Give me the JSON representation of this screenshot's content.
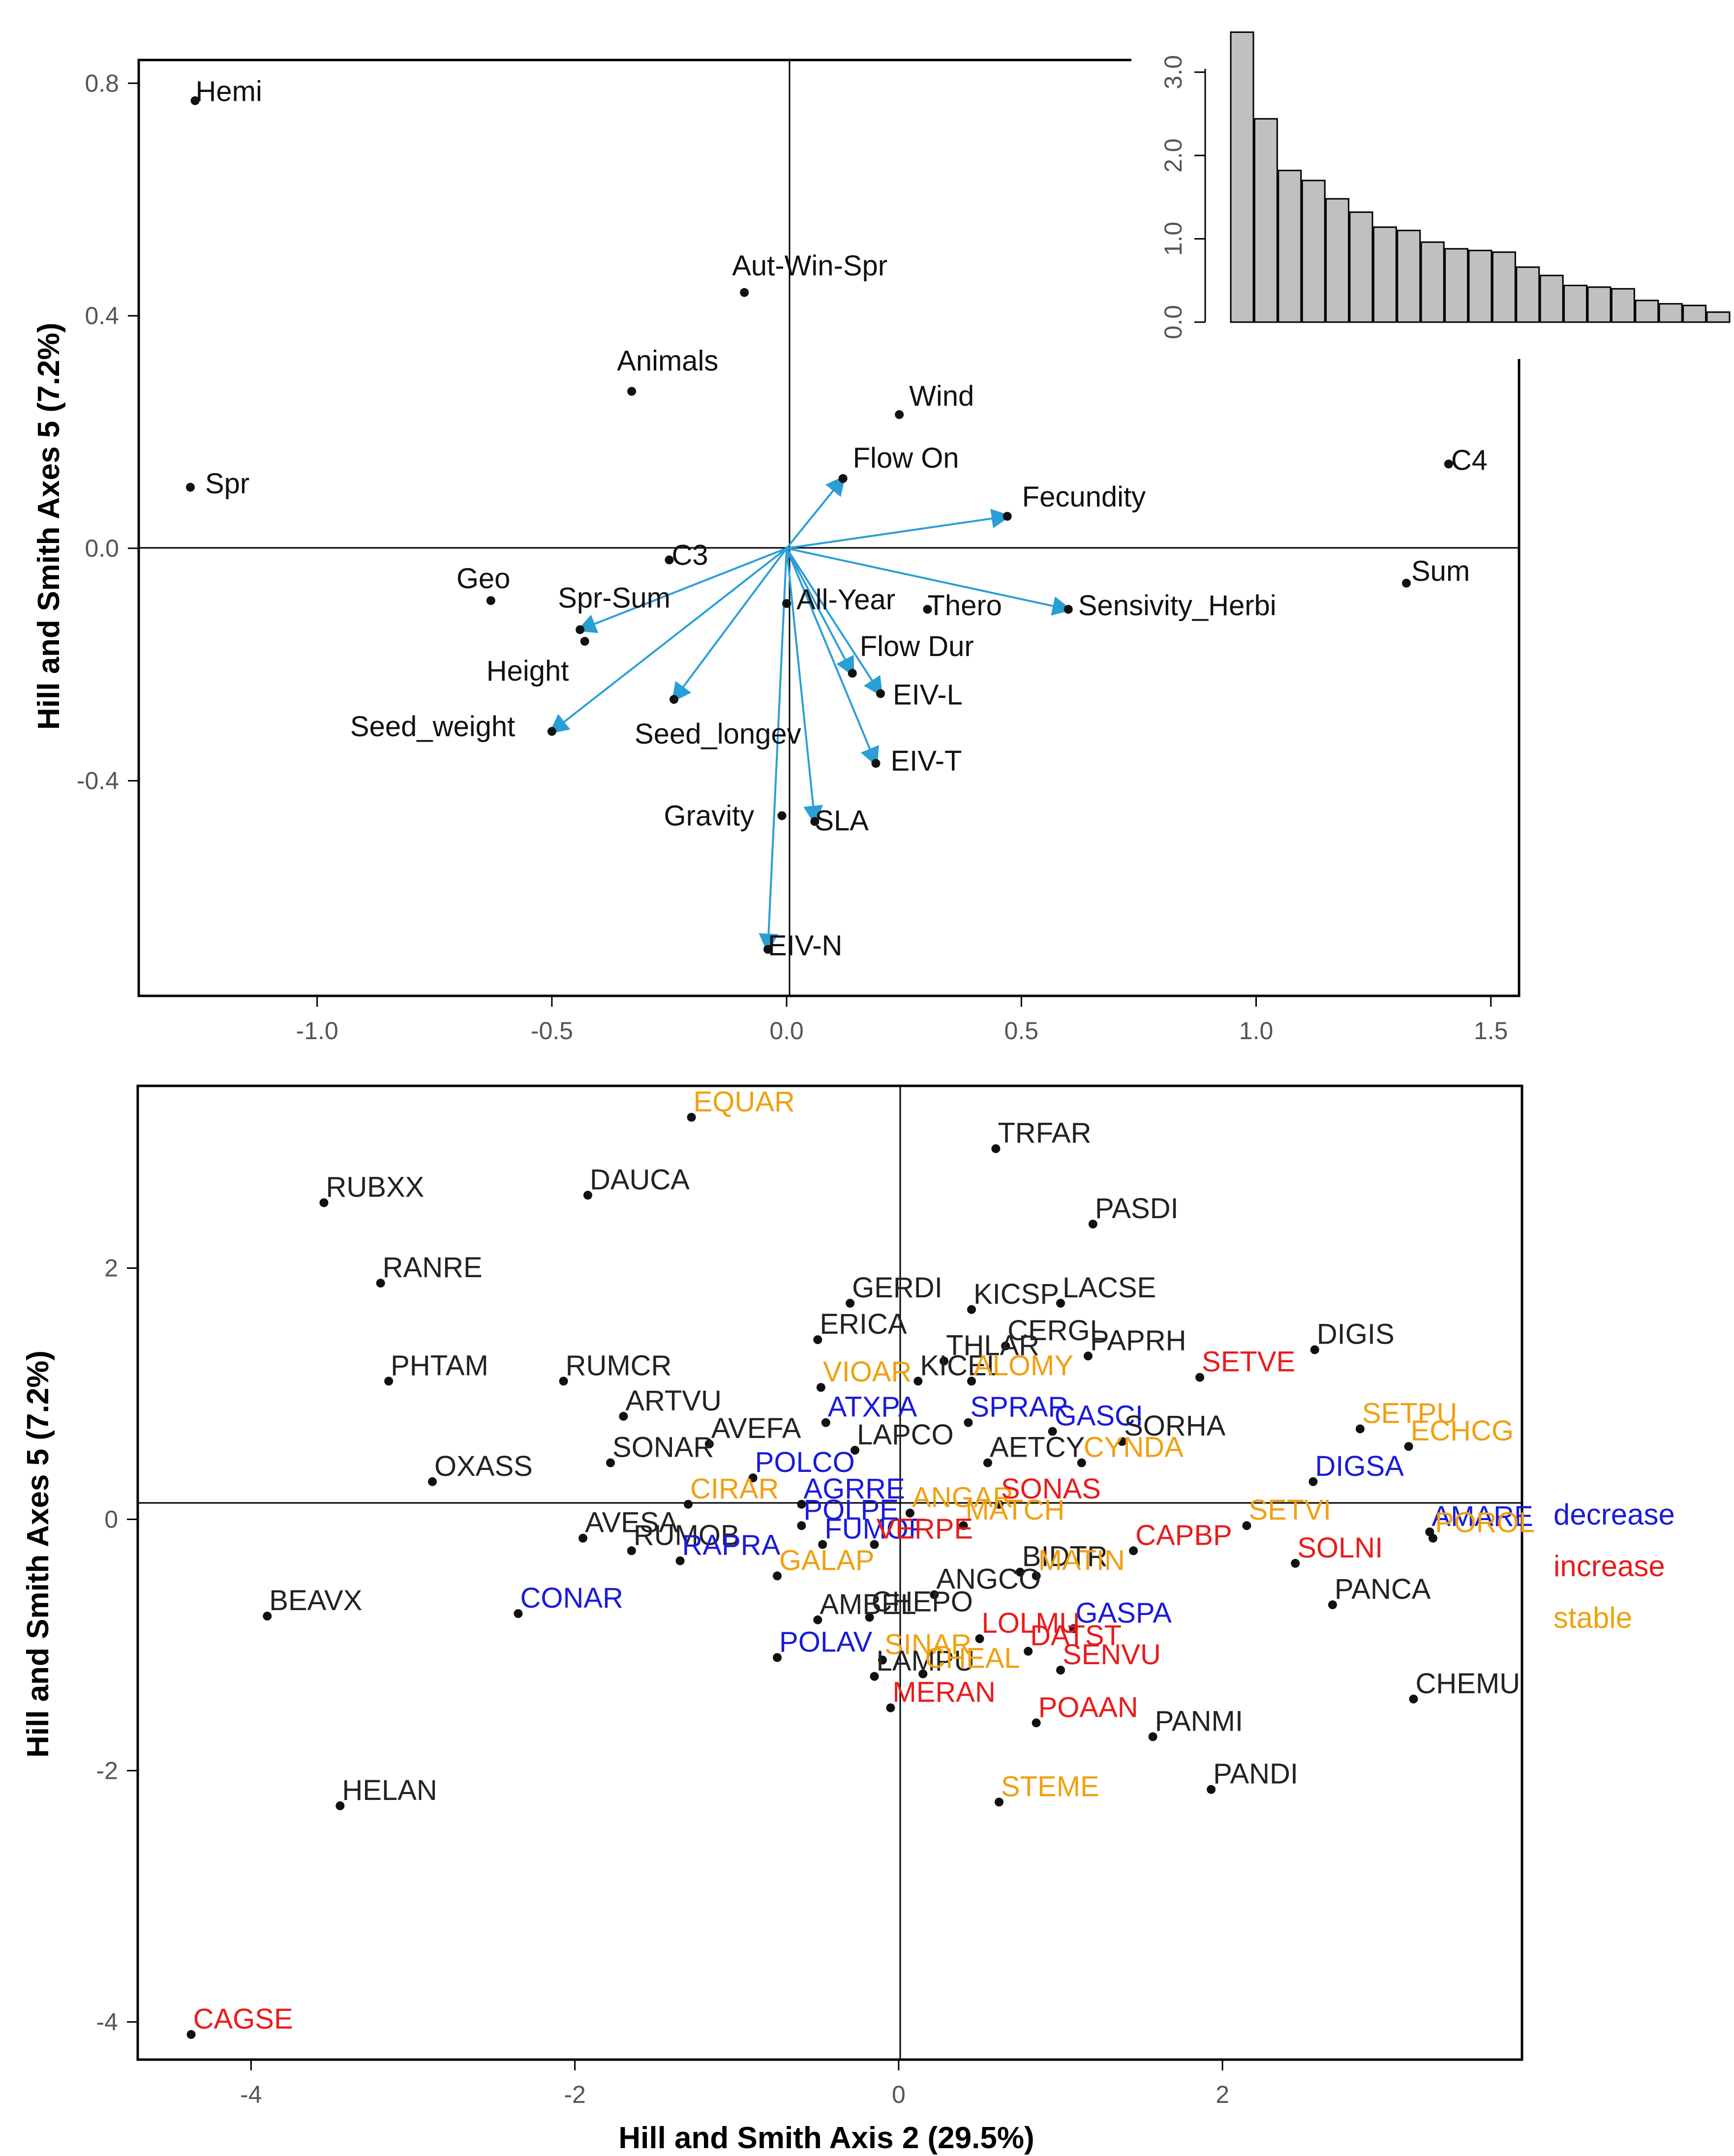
{
  "colors": {
    "arrow": "#2a9fd6",
    "decrease": "#1a1adb",
    "increase": "#e81c1c",
    "stable": "#f0a010",
    "neutral": "#222222",
    "bar_fill": "#c0c0c0"
  },
  "chart_data": [
    {
      "type": "scatter",
      "name": "trait-biplot",
      "ylabel": "Hill and Smith Axes 5 (7.2%)",
      "xlabel": "",
      "xlim": [
        -1.38,
        1.56
      ],
      "ylim": [
        -0.77,
        0.84
      ],
      "x_ticks": [
        -1.0,
        -0.5,
        0.0,
        0.5,
        1.0,
        1.5
      ],
      "x_tick_labels": [
        "-1.0",
        "-0.5",
        "0.0",
        "0.5",
        "1.0",
        "1.5"
      ],
      "y_ticks": [
        -0.4,
        0.0,
        0.4,
        0.8
      ],
      "y_tick_labels": [
        "-0.4",
        "0.0",
        "0.4",
        "0.8"
      ],
      "points": [
        {
          "label": "Hemi",
          "x": -1.26,
          "y": 0.77
        },
        {
          "label": "Aut-Win-Spr",
          "x": -0.09,
          "y": 0.44
        },
        {
          "label": "Animals",
          "x": -0.33,
          "y": 0.27
        },
        {
          "label": "Wind",
          "x": 0.24,
          "y": 0.23
        },
        {
          "label": "Flow On",
          "x": 0.12,
          "y": 0.12
        },
        {
          "label": "Spr",
          "x": -1.27,
          "y": 0.105
        },
        {
          "label": "Fecundity",
          "x": 0.47,
          "y": 0.055
        },
        {
          "label": "C4",
          "x": 1.41,
          "y": 0.145
        },
        {
          "label": "C3",
          "x": -0.25,
          "y": -0.02
        },
        {
          "label": "Geo",
          "x": -0.63,
          "y": -0.09
        },
        {
          "label": "Spr-Sum",
          "x": -0.44,
          "y": -0.14
        },
        {
          "label": "Height",
          "x": -0.43,
          "y": -0.16
        },
        {
          "label": "All-Year",
          "x": 0.0,
          "y": -0.095
        },
        {
          "label": "Thero",
          "x": 0.3,
          "y": -0.105
        },
        {
          "label": "Sensivity_Herbi",
          "x": 0.6,
          "y": -0.105
        },
        {
          "label": "Sum",
          "x": 1.32,
          "y": -0.06
        },
        {
          "label": "Flow Dur",
          "x": 0.14,
          "y": -0.215
        },
        {
          "label": "EIV-L",
          "x": 0.2,
          "y": -0.25
        },
        {
          "label": "Seed_weight",
          "x": -0.5,
          "y": -0.315
        },
        {
          "label": "Seed_longev",
          "x": -0.24,
          "y": -0.26
        },
        {
          "label": "EIV-T",
          "x": 0.19,
          "y": -0.37
        },
        {
          "label": "Gravity",
          "x": -0.01,
          "y": -0.46
        },
        {
          "label": "SLA",
          "x": 0.06,
          "y": -0.47
        },
        {
          "label": "EIV-N",
          "x": -0.04,
          "y": -0.69
        }
      ],
      "arrows": [
        {
          "label": "Flow On",
          "x": 0.12,
          "y": 0.12
        },
        {
          "label": "Fecundity",
          "x": 0.47,
          "y": 0.055
        },
        {
          "label": "Sensivity_Herbi",
          "x": 0.6,
          "y": -0.105
        },
        {
          "label": "Spr-Sum",
          "x": -0.44,
          "y": -0.14
        },
        {
          "label": "Seed_weight",
          "x": -0.5,
          "y": -0.315
        },
        {
          "label": "Seed_longev",
          "x": -0.24,
          "y": -0.26
        },
        {
          "label": "Flow Dur",
          "x": 0.14,
          "y": -0.215
        },
        {
          "label": "EIV-L",
          "x": 0.2,
          "y": -0.25
        },
        {
          "label": "EIV-T",
          "x": 0.19,
          "y": -0.37
        },
        {
          "label": "SLA",
          "x": 0.06,
          "y": -0.47
        },
        {
          "label": "EIV-N",
          "x": -0.04,
          "y": -0.69
        }
      ]
    },
    {
      "type": "bar",
      "name": "eigenvalue-screeplot",
      "y_ticks": [
        0.0,
        1.0,
        2.0,
        3.0
      ],
      "y_tick_labels": [
        "0.0",
        "1.0",
        "2.0",
        "3.0"
      ],
      "ylim": [
        0,
        3.5
      ],
      "values": [
        3.48,
        2.44,
        1.82,
        1.7,
        1.48,
        1.32,
        1.14,
        1.1,
        0.96,
        0.88,
        0.86,
        0.84,
        0.66,
        0.56,
        0.44,
        0.42,
        0.4,
        0.26,
        0.22,
        0.2,
        0.12
      ]
    },
    {
      "type": "scatter",
      "name": "species-scatter",
      "xlabel": "Hill and Smith Axis 2 (29.5%)",
      "ylabel": "Hill and Smith Axes 5 (7.2%)",
      "xlim": [
        -4.7,
        3.85
      ],
      "ylim": [
        -4.3,
        3.45
      ],
      "x_ticks": [
        -4,
        -2,
        0,
        2
      ],
      "x_tick_labels": [
        "-4",
        "-2",
        "0",
        "2"
      ],
      "y_ticks": [
        -4,
        -2,
        0,
        2
      ],
      "y_tick_labels": [
        "-4",
        "-2",
        "0",
        "2"
      ],
      "legend": {
        "position": "right",
        "entries": [
          {
            "label": "decrease",
            "group": "decrease"
          },
          {
            "label": "increase",
            "group": "increase"
          },
          {
            "label": "stable",
            "group": "stable"
          }
        ]
      },
      "points": [
        {
          "label": "EQUAR",
          "x": -1.28,
          "y": 3.2,
          "group": "stable"
        },
        {
          "label": "TRFAR",
          "x": 0.6,
          "y": 2.95,
          "group": "none"
        },
        {
          "label": "RUBXX",
          "x": -3.55,
          "y": 2.52,
          "group": "none"
        },
        {
          "label": "DAUCA",
          "x": -1.92,
          "y": 2.58,
          "group": "none"
        },
        {
          "label": "PASDI",
          "x": 1.2,
          "y": 2.35,
          "group": "none"
        },
        {
          "label": "RANRE",
          "x": -3.2,
          "y": 1.88,
          "group": "none"
        },
        {
          "label": "GERDI",
          "x": -0.3,
          "y": 1.72,
          "group": "none"
        },
        {
          "label": "KICSP",
          "x": 0.45,
          "y": 1.67,
          "group": "none"
        },
        {
          "label": "LACSE",
          "x": 1.0,
          "y": 1.72,
          "group": "none"
        },
        {
          "label": "ERICA",
          "x": -0.5,
          "y": 1.43,
          "group": "none"
        },
        {
          "label": "CERGL",
          "x": 0.66,
          "y": 1.38,
          "group": "none"
        },
        {
          "label": "PAPRH",
          "x": 1.17,
          "y": 1.3,
          "group": "none"
        },
        {
          "label": "DIGIS",
          "x": 2.57,
          "y": 1.35,
          "group": "none"
        },
        {
          "label": "THLAR",
          "x": 0.28,
          "y": 1.26,
          "group": "none"
        },
        {
          "label": "SETVE",
          "x": 1.86,
          "y": 1.13,
          "group": "increase"
        },
        {
          "label": "PHTAM",
          "x": -3.15,
          "y": 1.1,
          "group": "none"
        },
        {
          "label": "RUMCR",
          "x": -2.07,
          "y": 1.1,
          "group": "none"
        },
        {
          "label": "VIOAR",
          "x": -0.48,
          "y": 1.05,
          "group": "stable"
        },
        {
          "label": "KICEL",
          "x": 0.12,
          "y": 1.1,
          "group": "none"
        },
        {
          "label": "ALOMY",
          "x": 0.45,
          "y": 1.1,
          "group": "stable"
        },
        {
          "label": "SETPU",
          "x": 2.85,
          "y": 0.72,
          "group": "stable"
        },
        {
          "label": "ARTVU",
          "x": -1.7,
          "y": 0.82,
          "group": "none"
        },
        {
          "label": "ATXPA",
          "x": -0.45,
          "y": 0.77,
          "group": "decrease"
        },
        {
          "label": "SPRAR",
          "x": 0.43,
          "y": 0.77,
          "group": "decrease"
        },
        {
          "label": "GASCI",
          "x": 0.95,
          "y": 0.7,
          "group": "decrease"
        },
        {
          "label": "SORHA",
          "x": 1.38,
          "y": 0.62,
          "group": "none"
        },
        {
          "label": "ECHCG",
          "x": 3.15,
          "y": 0.58,
          "group": "stable"
        },
        {
          "label": "AVEFA",
          "x": -1.17,
          "y": 0.6,
          "group": "none"
        },
        {
          "label": "LAPCO",
          "x": -0.27,
          "y": 0.55,
          "group": "none"
        },
        {
          "label": "AETCY",
          "x": 0.55,
          "y": 0.45,
          "group": "none"
        },
        {
          "label": "CYNDA",
          "x": 1.13,
          "y": 0.45,
          "group": "stable"
        },
        {
          "label": "SONAR",
          "x": -1.78,
          "y": 0.45,
          "group": "none"
        },
        {
          "label": "POLCO",
          "x": -0.9,
          "y": 0.33,
          "group": "decrease"
        },
        {
          "label": "DIGSA",
          "x": 2.56,
          "y": 0.3,
          "group": "decrease"
        },
        {
          "label": "OXASS",
          "x": -2.88,
          "y": 0.3,
          "group": "none"
        },
        {
          "label": "CIRAR",
          "x": -1.3,
          "y": 0.12,
          "group": "stable"
        },
        {
          "label": "AGRRE",
          "x": -0.6,
          "y": 0.12,
          "group": "decrease"
        },
        {
          "label": "ANGAR",
          "x": 0.07,
          "y": 0.05,
          "group": "stable"
        },
        {
          "label": "SONAS",
          "x": 0.62,
          "y": 0.12,
          "group": "increase"
        },
        {
          "label": "AMARE",
          "x": 3.28,
          "y": -0.1,
          "group": "decrease"
        },
        {
          "label": "SETVI",
          "x": 2.15,
          "y": -0.05,
          "group": "stable"
        },
        {
          "label": "POROL",
          "x": 3.3,
          "y": -0.15,
          "group": "stable"
        },
        {
          "label": "POLPE",
          "x": -0.6,
          "y": -0.05,
          "group": "decrease"
        },
        {
          "label": "MATCH",
          "x": 0.4,
          "y": -0.05,
          "group": "stable"
        },
        {
          "label": "RUMOB",
          "x": -1.65,
          "y": -0.25,
          "group": "none"
        },
        {
          "label": "AVESA",
          "x": -1.95,
          "y": -0.15,
          "group": "none"
        },
        {
          "label": "FUMOF",
          "x": -0.47,
          "y": -0.2,
          "group": "decrease"
        },
        {
          "label": "VERPE",
          "x": -0.15,
          "y": -0.2,
          "group": "increase"
        },
        {
          "label": "CAPBP",
          "x": 1.45,
          "y": -0.25,
          "group": "increase"
        },
        {
          "label": "SOLNI",
          "x": 2.45,
          "y": -0.35,
          "group": "increase"
        },
        {
          "label": "RAPRA",
          "x": -1.35,
          "y": -0.33,
          "group": "decrease"
        },
        {
          "label": "BIDTR",
          "x": 0.75,
          "y": -0.42,
          "group": "none"
        },
        {
          "label": "GALAP",
          "x": -0.75,
          "y": -0.45,
          "group": "stable"
        },
        {
          "label": "MATIN",
          "x": 0.85,
          "y": -0.45,
          "group": "stable"
        },
        {
          "label": "ANGCO",
          "x": 0.22,
          "y": -0.6,
          "group": "none"
        },
        {
          "label": "PANCA",
          "x": 2.68,
          "y": -0.68,
          "group": "none"
        },
        {
          "label": "AMBEL",
          "x": -0.5,
          "y": -0.8,
          "group": "none"
        },
        {
          "label": "CHEPO",
          "x": -0.18,
          "y": -0.78,
          "group": "none"
        },
        {
          "label": "BEAVX",
          "x": -3.9,
          "y": -0.77,
          "group": "none"
        },
        {
          "label": "CONAR",
          "x": -2.35,
          "y": -0.75,
          "group": "decrease"
        },
        {
          "label": "GASPA",
          "x": 1.08,
          "y": -0.87,
          "group": "decrease"
        },
        {
          "label": "LOLMU",
          "x": 0.5,
          "y": -0.95,
          "group": "increase"
        },
        {
          "label": "POLAV",
          "x": -0.75,
          "y": -1.1,
          "group": "decrease"
        },
        {
          "label": "SINAR",
          "x": -0.1,
          "y": -1.12,
          "group": "stable"
        },
        {
          "label": "DATST",
          "x": 0.8,
          "y": -1.05,
          "group": "increase"
        },
        {
          "label": "SENVU",
          "x": 1.0,
          "y": -1.2,
          "group": "increase"
        },
        {
          "label": "LAMPU",
          "x": -0.15,
          "y": -1.25,
          "group": "none"
        },
        {
          "label": "CHEAL",
          "x": 0.15,
          "y": -1.23,
          "group": "stable"
        },
        {
          "label": "CHEMU",
          "x": 3.18,
          "y": -1.43,
          "group": "none"
        },
        {
          "label": "MERAN",
          "x": -0.05,
          "y": -1.5,
          "group": "increase"
        },
        {
          "label": "POAAN",
          "x": 0.85,
          "y": -1.62,
          "group": "increase"
        },
        {
          "label": "PANMI",
          "x": 1.57,
          "y": -1.73,
          "group": "none"
        },
        {
          "label": "PANDI",
          "x": 1.93,
          "y": -2.15,
          "group": "none"
        },
        {
          "label": "STEME",
          "x": 0.62,
          "y": -2.25,
          "group": "stable"
        },
        {
          "label": "HELAN",
          "x": -3.45,
          "y": -2.28,
          "group": "none"
        },
        {
          "label": "CAGSE",
          "x": -4.37,
          "y": -4.1,
          "group": "increase"
        }
      ]
    }
  ]
}
